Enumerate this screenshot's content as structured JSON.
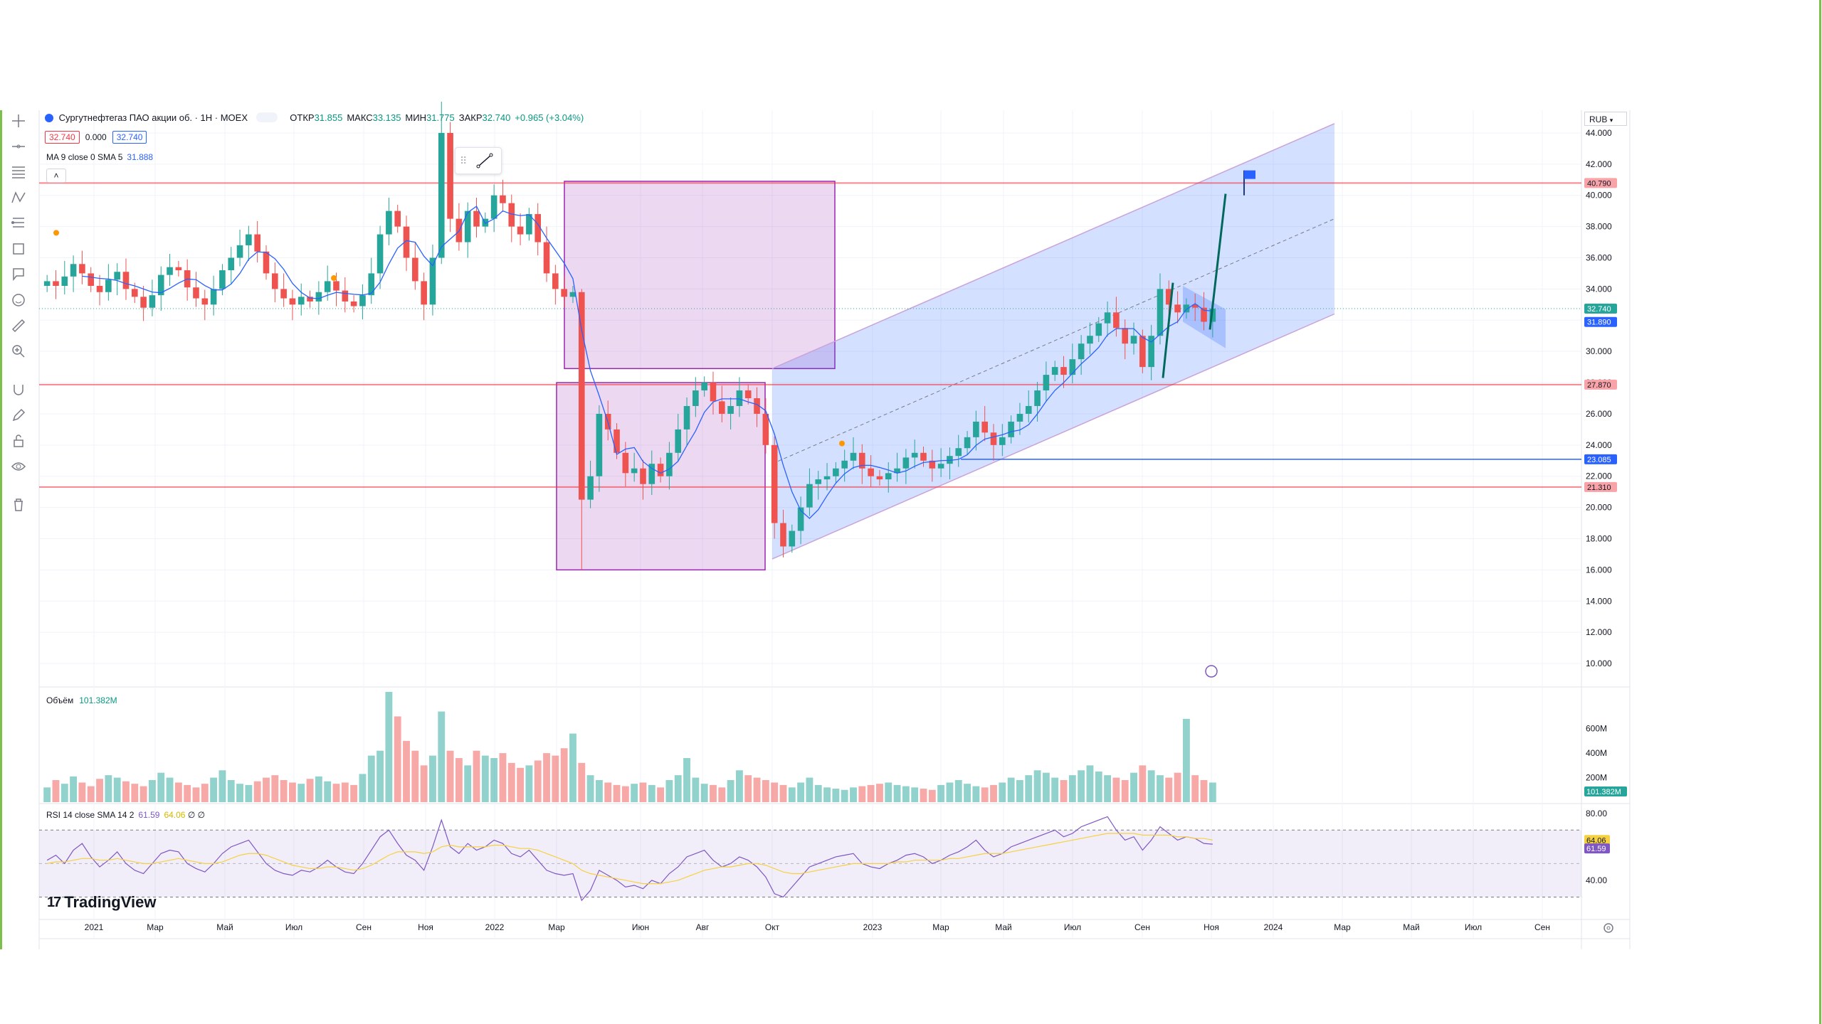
{
  "header": {
    "symbol_title": "Сургутнефтегаз ПАО акции об. · 1Н · MOEX",
    "ohlc": [
      {
        "k": "ОТКР",
        "v": "31.855"
      },
      {
        "k": "МАКС",
        "v": "33.135"
      },
      {
        "k": "МИН",
        "v": "31.775"
      },
      {
        "k": "ЗАКР",
        "v": "32.740"
      },
      {
        "k": "",
        "v": "+0.965 (+3.04%)"
      }
    ],
    "bid": "32.740",
    "spread": "0.000",
    "ask": "32.740",
    "ma_legend": "MA 9 close 0 SMA 5",
    "ma_value": "31.888",
    "currency": "RUB"
  },
  "volume_legend": {
    "label": "Объём",
    "value": "101.382M"
  },
  "rsi_legend": {
    "label": "RSI 14 close SMA 14 2",
    "rsi": "61.59",
    "sma": "64.06",
    "extra": "∅ ∅"
  },
  "logo": "TradingView",
  "colors": {
    "up": "#26a69a",
    "down": "#ef5350",
    "ma": "#2962ff",
    "channel": "#2962ff",
    "hline": "#f23645",
    "rectangle": "#9c27b0",
    "rsi": "#7e57c2",
    "rsi_sma": "#f5d142"
  },
  "chart_data": {
    "type": "candlestick",
    "title": "Сургутнефтегаз ПАО акции об. · 1Н · MOEX",
    "y_ticks": [
      "44.000",
      "42.000",
      "40.000",
      "38.000",
      "36.000",
      "34.000",
      "32.000",
      "30.000",
      "28.000",
      "26.000",
      "24.000",
      "22.000",
      "20.000",
      "18.000",
      "16.000",
      "14.000",
      "12.000",
      "10.000"
    ],
    "ylim": [
      9,
      45
    ],
    "x_ticks": [
      "2021",
      "Мар",
      "Май",
      "Июл",
      "Сен",
      "Ноя",
      "2022",
      "Мар",
      "Июн",
      "Авг",
      "Окт",
      "2023",
      "Мар",
      "Май",
      "Июл",
      "Сен",
      "Ноя",
      "2024",
      "Мар",
      "Май",
      "Июл",
      "Сен"
    ],
    "close_series": [
      34.5,
      34.2,
      34.8,
      35.6,
      35.0,
      34.2,
      33.8,
      34.6,
      35.1,
      34.0,
      33.5,
      32.8,
      33.6,
      34.9,
      35.4,
      35.2,
      34.1,
      33.4,
      33.0,
      34.0,
      35.2,
      36.0,
      36.8,
      37.5,
      36.4,
      35.0,
      34.0,
      33.4,
      33.0,
      33.5,
      33.2,
      33.8,
      34.5,
      33.9,
      33.2,
      32.9,
      33.6,
      35.0,
      37.5,
      39.0,
      38.0,
      36.0,
      34.5,
      33.0,
      36.0,
      44.0,
      38.5,
      37.0,
      39.0,
      38.0,
      38.5,
      40.0,
      39.5,
      38.0,
      37.5,
      38.8,
      37.0,
      35.0,
      34.0,
      33.5,
      33.8,
      20.5,
      22.0,
      26.0,
      25.0,
      23.5,
      22.2,
      22.5,
      21.5,
      22.8,
      22.0,
      23.5,
      25.0,
      26.5,
      27.5,
      28.0,
      26.8,
      26.0,
      26.5,
      27.5,
      27.0,
      26.0,
      24.0,
      19.0,
      17.5,
      18.5,
      20.0,
      21.5,
      21.8,
      22.0,
      22.5,
      23.0,
      23.5,
      22.5,
      22.0,
      21.8,
      22.2,
      22.5,
      23.2,
      23.5,
      23.0,
      22.5,
      22.8,
      23.3,
      23.8,
      24.5,
      25.5,
      24.8,
      24.0,
      24.5,
      25.5,
      26.0,
      26.5,
      27.5,
      28.5,
      29.0,
      28.5,
      29.5,
      30.5,
      31.0,
      31.8,
      32.5,
      31.5,
      30.5,
      31.0,
      29.0,
      31.0,
      34.0,
      33.0,
      32.5,
      33.0,
      32.8,
      31.9,
      32.74
    ],
    "moving_average": {
      "name": "MA 9 close 0 SMA 5",
      "last": 31.888
    },
    "last_price": 32.74,
    "ma_last_tag": 31.89,
    "horizontal_levels": [
      40.79,
      27.87,
      23.085,
      21.31
    ],
    "projection_target": 40.79,
    "volume": {
      "label": "Объём",
      "last": "101.382M",
      "y_ticks": [
        "600M",
        "400M",
        "200M"
      ],
      "values": [
        120,
        180,
        150,
        210,
        160,
        130,
        190,
        220,
        200,
        170,
        150,
        130,
        180,
        240,
        200,
        160,
        140,
        120,
        150,
        200,
        260,
        180,
        150,
        140,
        170,
        200,
        220,
        180,
        160,
        150,
        190,
        210,
        170,
        150,
        160,
        140,
        230,
        380,
        420,
        900,
        700,
        500,
        420,
        300,
        380,
        740,
        420,
        360,
        300,
        420,
        380,
        360,
        400,
        320,
        280,
        300,
        340,
        400,
        380,
        440,
        560,
        320,
        220,
        180,
        160,
        140,
        130,
        150,
        160,
        140,
        120,
        180,
        220,
        360,
        200,
        150,
        140,
        120,
        180,
        260,
        220,
        200,
        180,
        160,
        140,
        120,
        160,
        200,
        140,
        120,
        110,
        100,
        120,
        130,
        140,
        150,
        160,
        140,
        130,
        120,
        110,
        100,
        140,
        160,
        180,
        150,
        130,
        120,
        140,
        160,
        200,
        180,
        220,
        260,
        240,
        200,
        180,
        220,
        260,
        300,
        250,
        220,
        200,
        180,
        240,
        300,
        260,
        220,
        200,
        240,
        680,
        220,
        180,
        160,
        140,
        120,
        101
      ],
      "colors": "up/down per candle"
    },
    "rsi": {
      "label": "RSI 14 close SMA 14 2",
      "rsi_last": 61.59,
      "sma_last": 64.06,
      "y_ticks": [
        "80.00",
        "40.00"
      ],
      "levels": [
        70,
        30
      ],
      "values": [
        52,
        55,
        50,
        58,
        62,
        54,
        48,
        52,
        57,
        50,
        46,
        44,
        50,
        56,
        58,
        57,
        50,
        47,
        45,
        50,
        56,
        60,
        62,
        64,
        57,
        50,
        46,
        44,
        43,
        46,
        45,
        48,
        52,
        48,
        45,
        44,
        50,
        58,
        66,
        70,
        62,
        55,
        52,
        46,
        60,
        76,
        60,
        56,
        62,
        58,
        60,
        64,
        62,
        56,
        54,
        58,
        52,
        46,
        44,
        43,
        44,
        28,
        34,
        46,
        43,
        40,
        36,
        37,
        35,
        40,
        38,
        44,
        48,
        54,
        56,
        58,
        52,
        48,
        50,
        54,
        52,
        48,
        42,
        32,
        30,
        36,
        42,
        48,
        50,
        52,
        54,
        55,
        56,
        50,
        48,
        47,
        50,
        52,
        55,
        56,
        54,
        50,
        52,
        55,
        57,
        60,
        64,
        58,
        54,
        56,
        60,
        62,
        64,
        66,
        68,
        70,
        66,
        68,
        72,
        74,
        76,
        78,
        70,
        64,
        66,
        58,
        64,
        72,
        68,
        64,
        66,
        65,
        62,
        61.59
      ],
      "sma_values": [
        50,
        51,
        51,
        52,
        53,
        53,
        52,
        52,
        53,
        52,
        51,
        50,
        50,
        51,
        52,
        53,
        52,
        51,
        50,
        50,
        51,
        53,
        55,
        56,
        56,
        55,
        53,
        51,
        49,
        48,
        47,
        47,
        48,
        48,
        47,
        46,
        47,
        49,
        52,
        55,
        57,
        57,
        57,
        56,
        57,
        60,
        61,
        60,
        60,
        60,
        60,
        61,
        61,
        60,
        59,
        59,
        58,
        56,
        54,
        52,
        50,
        46,
        44,
        43,
        42,
        41,
        40,
        39,
        38,
        38,
        38,
        39,
        40,
        42,
        44,
        46,
        47,
        48,
        48,
        49,
        50,
        50,
        49,
        47,
        45,
        44,
        44,
        45,
        46,
        47,
        48,
        49,
        50,
        50,
        50,
        50,
        50,
        51,
        51,
        52,
        52,
        52,
        52,
        53,
        53,
        54,
        55,
        56,
        56,
        56,
        57,
        58,
        59,
        60,
        61,
        62,
        63,
        64,
        65,
        66,
        67,
        68,
        68,
        68,
        68,
        67,
        67,
        67,
        67,
        66,
        66,
        65,
        65,
        64.06
      ]
    }
  }
}
